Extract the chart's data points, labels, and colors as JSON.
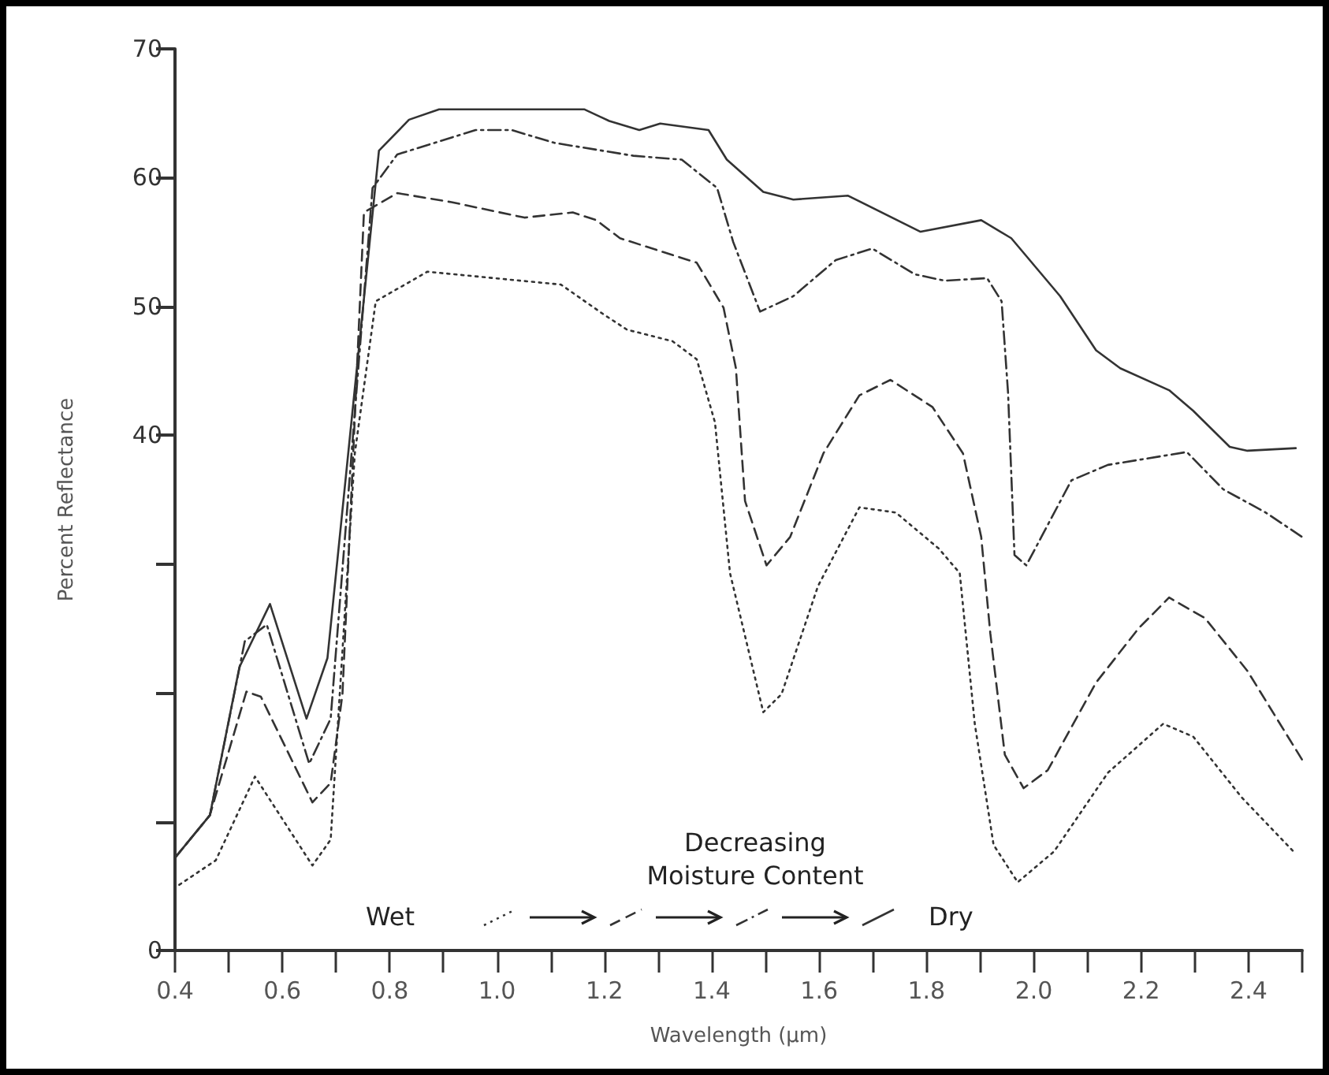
{
  "chart_data": {
    "type": "line",
    "xlabel": "Wavelength (µm)",
    "ylabel": "Percent Reflectance",
    "xlim": [
      0.4,
      2.5
    ],
    "ylim": [
      0,
      70
    ],
    "xticks": [
      0.4,
      {
        "value": 0.5,
        "label": null
      },
      0.6,
      {
        "value": 0.7,
        "label": null
      },
      0.8,
      {
        "value": 0.9,
        "label": null
      },
      {
        "value": 1,
        "label": "1.0"
      },
      {
        "value": 1.1,
        "label": null
      },
      1.2,
      {
        "value": 1.3,
        "label": null
      },
      1.4,
      {
        "value": 1.5,
        "label": null
      },
      1.6,
      {
        "value": 1.7,
        "label": null
      },
      1.8,
      {
        "value": 1.9,
        "label": null
      },
      {
        "value": 2,
        "label": "2.0"
      },
      {
        "value": 2.1,
        "label": null
      },
      2.2,
      {
        "value": 2.3,
        "label": null
      },
      2.4,
      {
        "value": 2.5,
        "label": null
      }
    ],
    "yticks": [
      0,
      {
        "value": 10,
        "label": null
      },
      {
        "value": 20,
        "label": null
      },
      {
        "value": 30,
        "label": null
      },
      40,
      50,
      60,
      70
    ],
    "grid": false,
    "marker": "none",
    "annotations": [
      "Decreasing Moisture Content",
      "Wet",
      "Dry"
    ],
    "series": [
      {
        "color": "#333333",
        "line_style": "dotted",
        "x": [
          0.408,
          0.476,
          0.549,
          0.656,
          0.69,
          0.735,
          0.774,
          0.87,
          1.119,
          1.198,
          1.242,
          1.327,
          1.372,
          1.406,
          1.434,
          1.496,
          1.53,
          1.598,
          1.675,
          1.743,
          1.823,
          1.862,
          1.89,
          1.925,
          1.97,
          2.038,
          2.138,
          2.241,
          2.297,
          2.387,
          2.488
        ],
        "values": [
          5.1,
          7.0,
          13.5,
          6.6,
          8.6,
          38.6,
          50.4,
          52.7,
          51.7,
          49.4,
          48.2,
          47.3,
          45.9,
          41.0,
          29.3,
          18.5,
          19.9,
          28.3,
          34.4,
          34.0,
          31.2,
          29.3,
          17.6,
          8.2,
          5.3,
          7.7,
          13.8,
          17.6,
          16.6,
          11.9,
          7.5
        ]
      },
      {
        "color": "#333333",
        "line_style": "dashed",
        "x": [
          0.4,
          0.465,
          0.533,
          0.56,
          0.656,
          0.69,
          0.712,
          0.752,
          0.814,
          0.915,
          1.051,
          1.141,
          1.185,
          1.229,
          1.304,
          1.372,
          1.422,
          1.445,
          1.462,
          1.502,
          1.546,
          1.608,
          1.675,
          1.733,
          1.811,
          1.868,
          1.902,
          1.919,
          1.946,
          1.981,
          2.026,
          2.116,
          2.195,
          2.252,
          2.319,
          2.398,
          2.5
        ],
        "values": [
          7.2,
          10.5,
          20.1,
          19.7,
          11.5,
          13.0,
          19.9,
          57.3,
          58.8,
          58.1,
          56.9,
          57.3,
          56.7,
          55.3,
          54.3,
          53.4,
          49.9,
          45.2,
          34.9,
          29.9,
          32.1,
          38.6,
          43.1,
          44.3,
          42.2,
          38.6,
          32.1,
          24.6,
          15.2,
          12.6,
          14.0,
          20.8,
          25.0,
          27.4,
          25.8,
          21.7,
          14.8
        ]
      },
      {
        "color": "#333333",
        "line_style": "dashdot",
        "x": [
          0.4,
          0.465,
          0.53,
          0.571,
          0.65,
          0.69,
          0.768,
          0.814,
          0.96,
          1.027,
          1.107,
          1.254,
          1.344,
          1.41,
          1.44,
          1.49,
          1.552,
          1.631,
          1.699,
          1.778,
          1.834,
          1.913,
          1.94,
          1.952,
          1.964,
          1.986,
          2.014,
          2.07,
          2.138,
          2.285,
          2.353,
          2.432,
          2.5
        ],
        "values": [
          7.2,
          10.5,
          24.0,
          25.3,
          14.5,
          18.0,
          59.2,
          61.8,
          63.7,
          63.7,
          62.7,
          61.7,
          61.4,
          59.2,
          55.0,
          49.6,
          50.8,
          53.6,
          54.5,
          52.5,
          52.0,
          52.2,
          50.4,
          43.3,
          30.7,
          29.9,
          32.1,
          36.5,
          37.7,
          38.7,
          35.8,
          34.0,
          32.1
        ]
      },
      {
        "color": "#333333",
        "line_style": "solid",
        "x": [
          0.4,
          0.465,
          0.52,
          0.577,
          0.645,
          0.684,
          0.78,
          0.836,
          0.892,
          1.163,
          1.209,
          1.265,
          1.304,
          1.394,
          1.428,
          1.496,
          1.552,
          1.654,
          1.789,
          1.902,
          1.958,
          2.049,
          2.116,
          2.161,
          2.252,
          2.297,
          2.365,
          2.398,
          2.488
        ],
        "values": [
          7.2,
          10.5,
          22.0,
          26.9,
          18.0,
          22.7,
          62.1,
          64.5,
          65.3,
          65.3,
          64.4,
          63.7,
          64.2,
          63.7,
          61.4,
          58.9,
          58.3,
          58.6,
          55.8,
          56.7,
          55.3,
          50.8,
          46.6,
          45.2,
          43.5,
          41.9,
          39.1,
          38.8,
          39.0
        ]
      }
    ]
  }
}
